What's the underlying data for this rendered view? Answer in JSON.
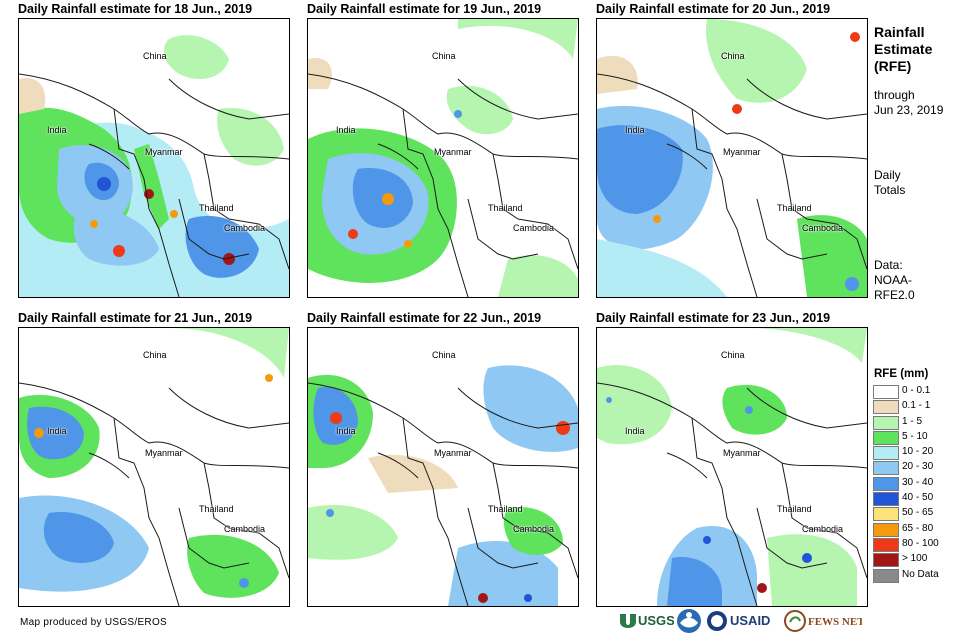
{
  "panels": [
    {
      "title": "Daily Rainfall estimate for 18 Jun., 2019",
      "labels": {
        "china": "China",
        "india": "India",
        "myanmar": "Myanmar",
        "thailand": "Thailand",
        "cambodia": "Cambodia"
      }
    },
    {
      "title": "Daily Rainfall estimate for 19 Jun., 2019",
      "labels": {
        "china": "China",
        "india": "India",
        "myanmar": "Myanmar",
        "thailand": "Thailand",
        "cambodia": "Cambodia"
      }
    },
    {
      "title": "Daily Rainfall estimate for 20 Jun., 2019",
      "labels": {
        "china": "China",
        "india": "India",
        "myanmar": "Myanmar",
        "thailand": "Thailand",
        "cambodia": "Cambodia"
      }
    },
    {
      "title": "Daily Rainfall estimate for 21 Jun., 2019",
      "labels": {
        "china": "China",
        "india": "India",
        "myanmar": "Myanmar",
        "thailand": "Thailand",
        "cambodia": "Cambodia"
      }
    },
    {
      "title": "Daily Rainfall estimate for 22 Jun., 2019",
      "labels": {
        "china": "China",
        "india": "India",
        "myanmar": "Myanmar",
        "thailand": "Thailand",
        "cambodia": "Cambodia"
      }
    },
    {
      "title": "Daily Rainfall estimate for 23 Jun., 2019",
      "labels": {
        "china": "China",
        "india": "India",
        "myanmar": "Myanmar",
        "thailand": "Thailand",
        "cambodia": "Cambodia"
      }
    }
  ],
  "sidebar": {
    "title_line1": "Rainfall",
    "title_line2": "Estimate",
    "title_line3": "(RFE)",
    "through_line1": "through",
    "through_line2": "Jun 23, 2019",
    "totals_line1": "Daily",
    "totals_line2": "Totals",
    "data_line1": "Data:",
    "data_line2": "NOAA-",
    "data_line3": "RFE2.0"
  },
  "legend": {
    "title": "RFE (mm)",
    "items": [
      {
        "label": "0 - 0.1",
        "color": "#ffffff"
      },
      {
        "label": "0.1 - 1",
        "color": "#eedcbc"
      },
      {
        "label": "1 - 5",
        "color": "#b6f5b0"
      },
      {
        "label": "5 - 10",
        "color": "#5fe35c"
      },
      {
        "label": "10 - 20",
        "color": "#b4ecf6"
      },
      {
        "label": "20 - 30",
        "color": "#8fc8f2"
      },
      {
        "label": "30 - 40",
        "color": "#4f96e8"
      },
      {
        "label": "40 - 50",
        "color": "#1f55d6"
      },
      {
        "label": "50 - 65",
        "color": "#fbe27a"
      },
      {
        "label": "65 - 80",
        "color": "#f59a0c"
      },
      {
        "label": "80 - 100",
        "color": "#ee3a16"
      },
      {
        "label": "> 100",
        "color": "#a11616"
      },
      {
        "label": "No Data",
        "color": "#8a8a8a"
      }
    ]
  },
  "credit": "Map produced by USGS/EROS",
  "logos": [
    "USGS",
    "NOAA",
    "USAID",
    "FEWS NET"
  ]
}
